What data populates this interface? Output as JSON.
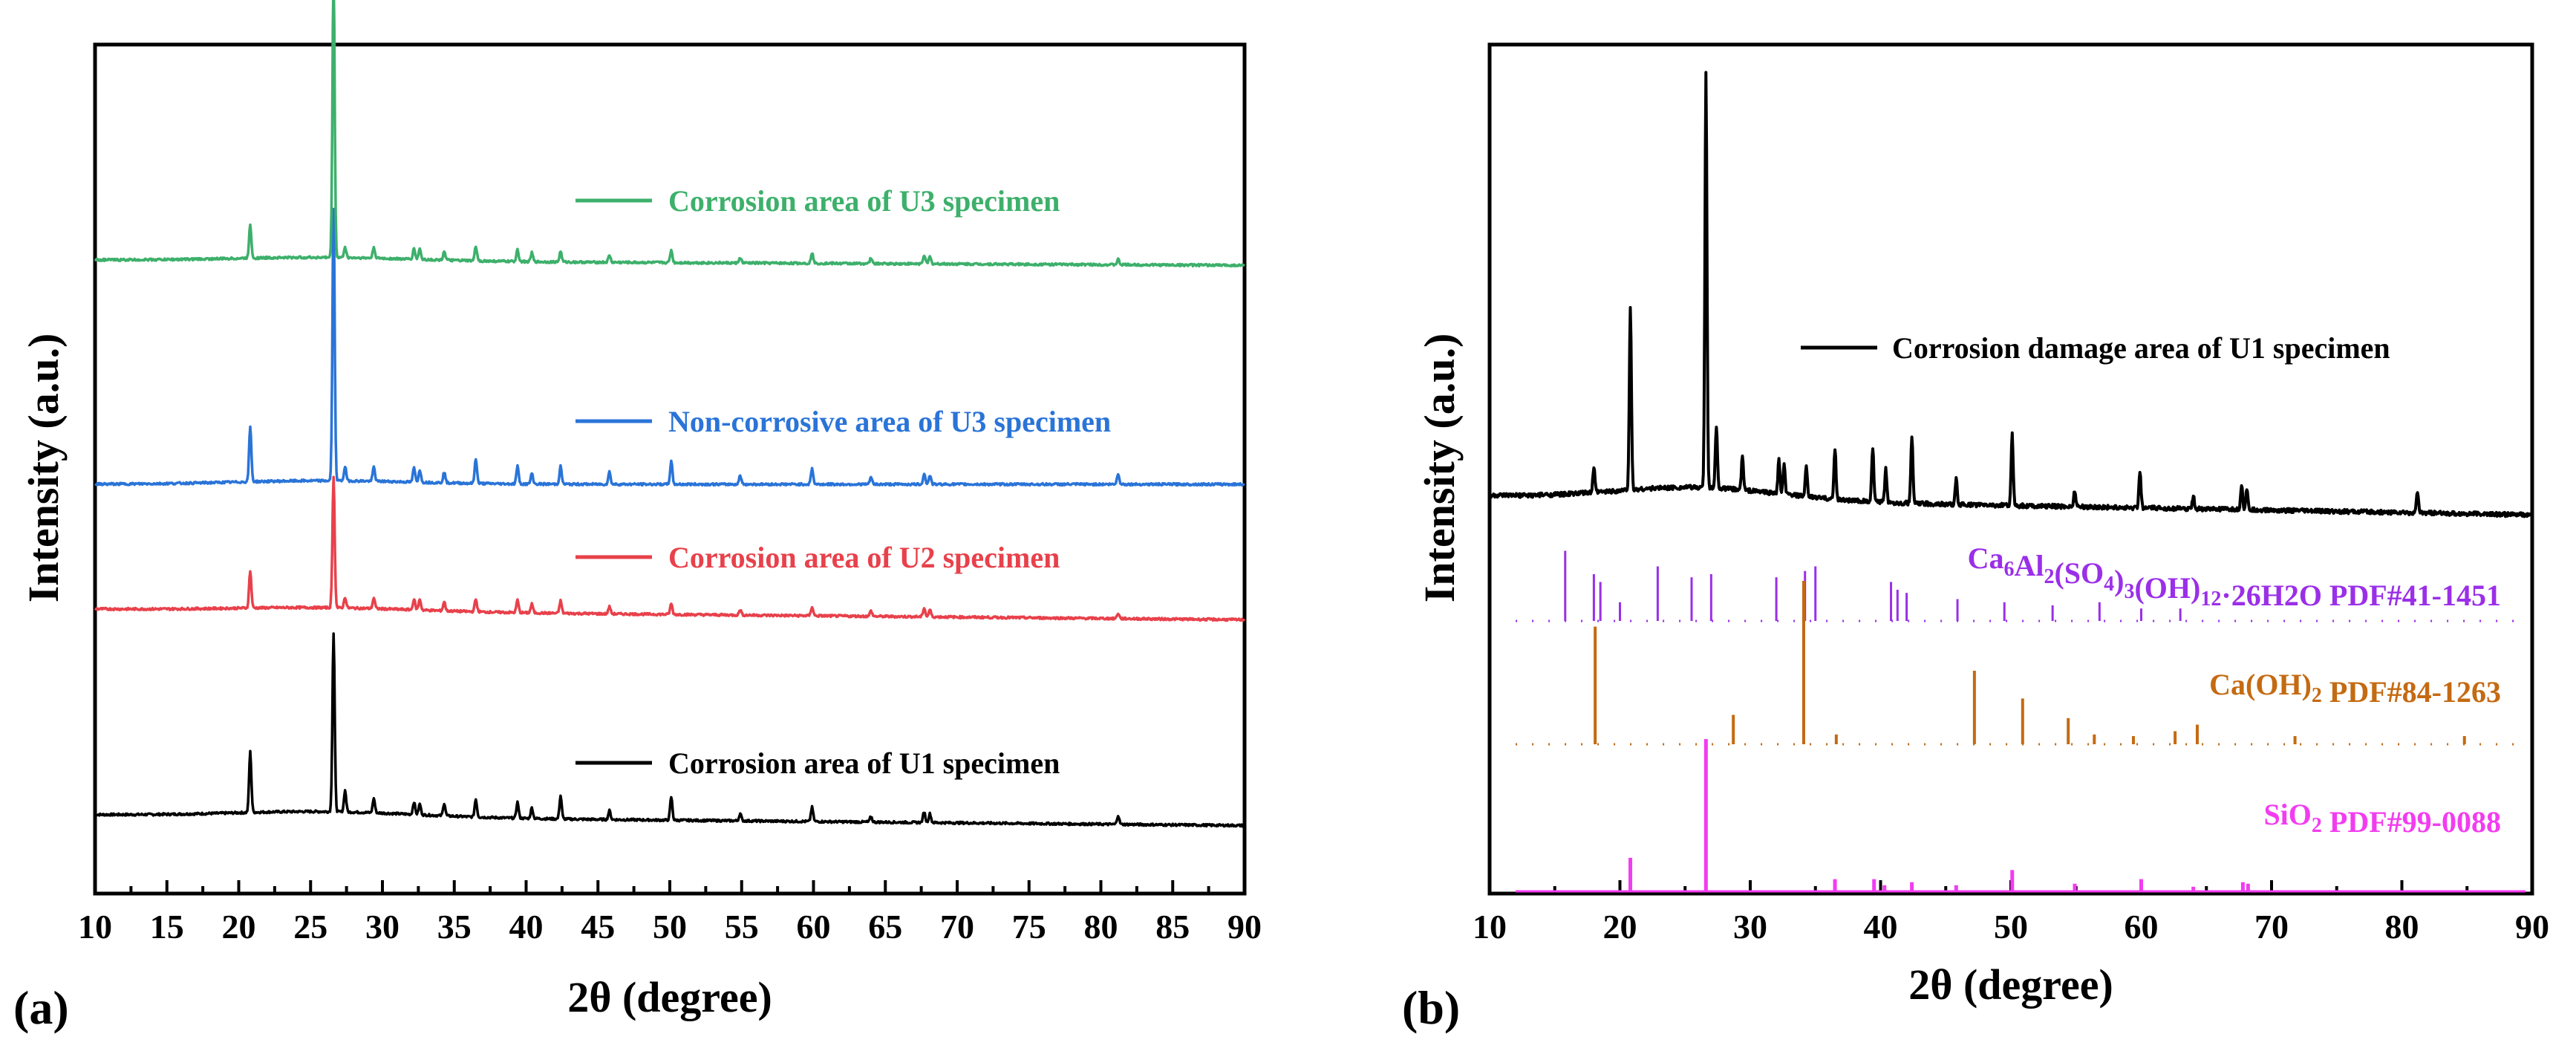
{
  "colors": {
    "U1": "#000000",
    "U2": "#e8414b",
    "U3_noncorr": "#2a74d8",
    "U3_corr": "#3db06b",
    "ettringite": "#9a2fe8",
    "portlandite": "#c46a12",
    "quartz": "#f23cf0"
  },
  "chart_data": [
    {
      "panel": "(a)",
      "type": "line",
      "xlabel": "2θ (degree)",
      "ylabel": "Intensity (a.u.)",
      "xlim": [
        10,
        90
      ],
      "xticks": [
        "10",
        "15",
        "20",
        "25",
        "30",
        "35",
        "40",
        "45",
        "50",
        "55",
        "60",
        "65",
        "70",
        "75",
        "80",
        "85",
        "90"
      ],
      "peaks_2theta": [
        20.8,
        26.6,
        27.4,
        29.4,
        32.2,
        32.6,
        34.3,
        36.5,
        39.4,
        40.4,
        42.4,
        45.8,
        50.1,
        54.9,
        59.9,
        64.0,
        67.7,
        68.1,
        81.2
      ],
      "series": [
        {
          "name": "Corrosion area of U1 specimen",
          "color_key": "U1",
          "offset": 0,
          "baseline_tilt": 0.06,
          "peak_heights": [
            0.34,
            1.0,
            0.12,
            0.08,
            0.07,
            0.06,
            0.07,
            0.1,
            0.09,
            0.06,
            0.13,
            0.05,
            0.13,
            0.04,
            0.08,
            0.03,
            0.06,
            0.05,
            0.05
          ]
        },
        {
          "name": "Corrosion area of U2 specimen",
          "color_key": "U2",
          "offset": 1.0,
          "baseline_tilt": 0.06,
          "peak_heights": [
            0.21,
            0.73,
            0.06,
            0.06,
            0.06,
            0.06,
            0.05,
            0.07,
            0.07,
            0.05,
            0.07,
            0.04,
            0.06,
            0.03,
            0.05,
            0.03,
            0.05,
            0.04,
            0.03
          ]
        },
        {
          "name": "Non-corrosive area of U3 specimen",
          "color_key": "U3_noncorr",
          "offset": 1.6,
          "baseline_tilt": 0.0,
          "peak_heights": [
            0.31,
            1.52,
            0.08,
            0.08,
            0.08,
            0.07,
            0.06,
            0.14,
            0.1,
            0.06,
            0.1,
            0.07,
            0.13,
            0.05,
            0.09,
            0.04,
            0.06,
            0.05,
            0.06
          ]
        },
        {
          "name": "Corrosion area of U3 specimen",
          "color_key": "U3_corr",
          "offset": 2.7,
          "baseline_tilt": 0.03,
          "peak_heights": [
            0.19,
            1.59,
            0.06,
            0.06,
            0.06,
            0.06,
            0.05,
            0.08,
            0.07,
            0.05,
            0.06,
            0.04,
            0.07,
            0.03,
            0.06,
            0.03,
            0.05,
            0.04,
            0.03
          ]
        }
      ]
    },
    {
      "panel": "(b)",
      "type": "line",
      "xlabel": "2θ (degree)",
      "ylabel": "Intensity (a.u.)",
      "xlim": [
        10,
        90
      ],
      "xticks": [
        "10",
        "20",
        "30",
        "40",
        "50",
        "60",
        "70",
        "80",
        "90"
      ],
      "series": [
        {
          "name": "Corrosion damage area of U1 specimen",
          "color_key": "U1",
          "peaks_2theta": [
            18.0,
            20.8,
            26.6,
            27.4,
            29.4,
            32.2,
            32.6,
            34.3,
            36.5,
            39.4,
            40.4,
            42.4,
            45.8,
            50.1,
            54.9,
            59.9,
            64.0,
            67.7,
            68.1,
            81.2
          ],
          "peak_heights": [
            0.06,
            0.44,
            1.0,
            0.15,
            0.08,
            0.08,
            0.07,
            0.07,
            0.12,
            0.13,
            0.08,
            0.16,
            0.06,
            0.17,
            0.04,
            0.09,
            0.03,
            0.06,
            0.05,
            0.05
          ]
        }
      ],
      "references": [
        {
          "label": "Ca6Al2(SO4)3(OH)12·26H2O PDF#41-1451",
          "color_key": "ettringite",
          "positions": [
            15.8,
            18.0,
            18.5,
            20.0,
            22.9,
            25.5,
            27.0,
            32.0,
            34.2,
            35.0,
            40.8,
            41.3,
            42.0,
            45.9,
            49.5,
            53.2,
            56.8,
            60.0,
            63.0
          ],
          "heights": [
            0.45,
            0.3,
            0.25,
            0.12,
            0.35,
            0.28,
            0.3,
            0.28,
            0.32,
            0.35,
            0.25,
            0.2,
            0.18,
            0.14,
            0.12,
            0.1,
            0.12,
            0.08,
            0.08
          ]
        },
        {
          "label": "Ca(OH)2 PDF#84-1263",
          "color_key": "portlandite",
          "positions": [
            18.1,
            28.7,
            34.1,
            36.6,
            47.2,
            50.9,
            54.4,
            56.4,
            59.4,
            62.6,
            64.3,
            71.8,
            84.8
          ],
          "heights": [
            0.72,
            0.18,
            1.0,
            0.06,
            0.45,
            0.28,
            0.16,
            0.06,
            0.05,
            0.08,
            0.12,
            0.05,
            0.05
          ]
        },
        {
          "label": "SiO2 PDF#99-0088",
          "color_key": "quartz",
          "positions": [
            20.8,
            26.6,
            36.5,
            39.5,
            40.3,
            42.4,
            45.8,
            50.1,
            54.9,
            60.0,
            64.0,
            67.8,
            68.2
          ],
          "heights": [
            0.22,
            1.0,
            0.08,
            0.08,
            0.04,
            0.06,
            0.04,
            0.14,
            0.05,
            0.08,
            0.03,
            0.06,
            0.05
          ]
        }
      ]
    }
  ]
}
